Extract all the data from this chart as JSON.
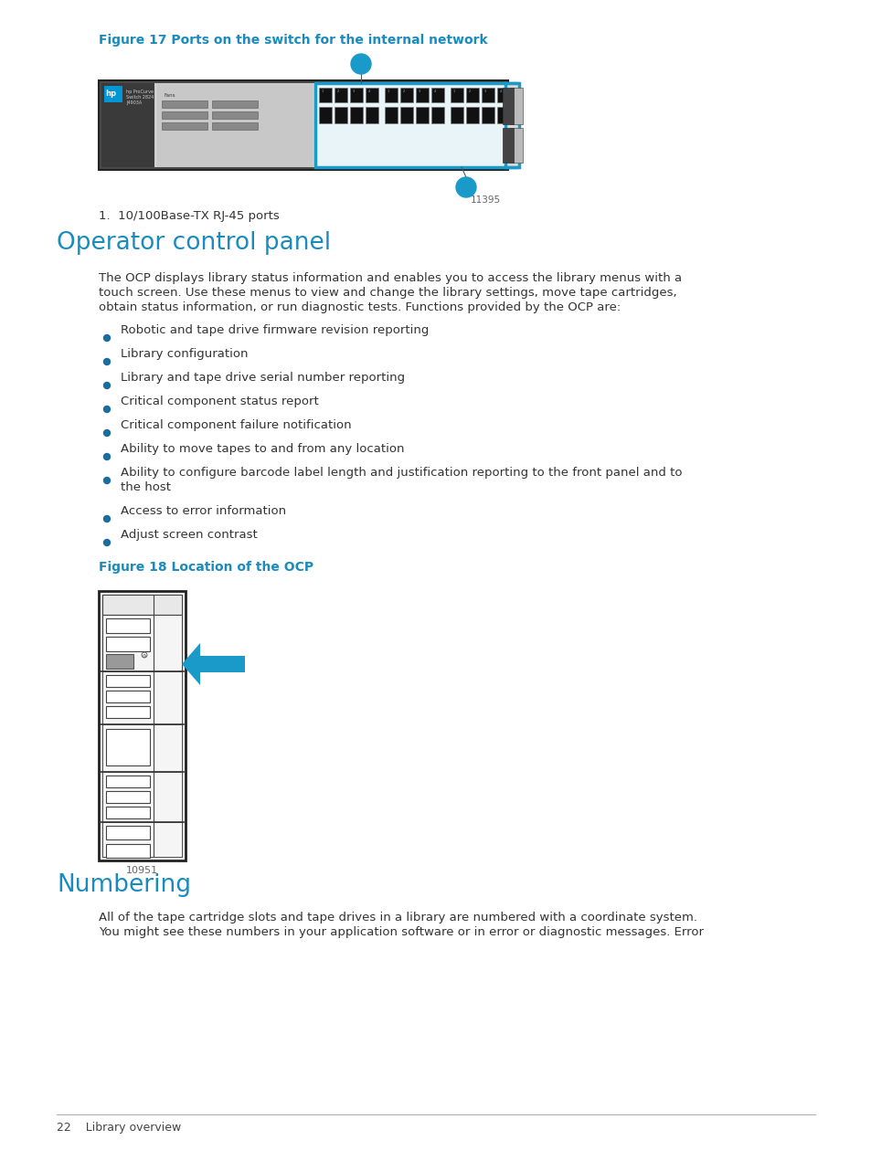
{
  "bg_color": "#ffffff",
  "blue_color": "#1a8bbf",
  "dark_blue_color": "#1a6e9e",
  "body_color": "#333333",
  "gray_color": "#666666",
  "figure17_caption": "Figure 17 Ports on the switch for the internal network",
  "figure18_caption": "Figure 18 Location of the OCP",
  "figure17_id": "11395",
  "figure18_id": "10951",
  "note1": "1.  10/100Base-TX RJ-45 ports",
  "section_heading": "Operator control panel",
  "body_lines": [
    "The OCP displays library status information and enables you to access the library menus with a",
    "touch screen. Use these menus to view and change the library settings, move tape cartridges,",
    "obtain status information, or run diagnostic tests. Functions provided by the OCP are:"
  ],
  "bullets": [
    [
      "Robotic and tape drive firmware revision reporting"
    ],
    [
      "Library configuration"
    ],
    [
      "Library and tape drive serial number reporting"
    ],
    [
      "Critical component status report"
    ],
    [
      "Critical component failure notification"
    ],
    [
      "Ability to move tapes to and from any location"
    ],
    [
      "Ability to configure barcode label length and justification reporting to the front panel and to",
      "the host"
    ],
    [
      "Access to error information"
    ],
    [
      "Adjust screen contrast"
    ]
  ],
  "numbering_heading": "Numbering",
  "numbering_lines": [
    "All of the tape cartridge slots and tape drives in a library are numbered with a coordinate system.",
    "You might see these numbers in your application software or in error or diagnostic messages. Error"
  ],
  "footer": "22    Library overview"
}
